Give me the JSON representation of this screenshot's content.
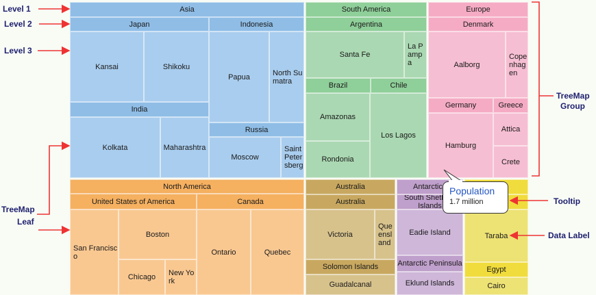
{
  "colors": {
    "asia_header": "#8fbde6",
    "asia_leaf": "#a9cdee",
    "south_america_header": "#8fcf99",
    "south_america_leaf": "#aad8b2",
    "europe_header": "#f5abc4",
    "europe_leaf": "#f6bed2",
    "north_america_header": "#f5b060",
    "north_america_leaf": "#f9c891",
    "australia_header": "#c8a860",
    "australia_leaf": "#d7c28c",
    "antarctica_header": "#bf9fcb",
    "antarctica_leaf": "#ceb7d9",
    "africa_header": "#f0dc3c",
    "africa_leaf": "#ede274",
    "annotation_text": "#1e1e6e",
    "arrow": "#ee3333",
    "tooltip_title": "#2456c4"
  },
  "tiles": [
    {
      "label": "Asia",
      "kind": "header",
      "group": "asia"
    },
    {
      "label": "Japan",
      "kind": "header",
      "group": "asia"
    },
    {
      "label": "Indonesia",
      "kind": "header",
      "group": "asia"
    },
    {
      "label": "Kansai",
      "kind": "leaf",
      "group": "asia"
    },
    {
      "label": "Shikoku",
      "kind": "leaf",
      "group": "asia"
    },
    {
      "label": "India",
      "kind": "header",
      "group": "asia"
    },
    {
      "label": "Kolkata",
      "kind": "leaf",
      "group": "asia"
    },
    {
      "label": "Maharashtra",
      "kind": "leaf",
      "group": "asia"
    },
    {
      "label": "Papua",
      "kind": "leaf",
      "group": "asia"
    },
    {
      "label": "North Sumatra",
      "kind": "leaf",
      "group": "asia"
    },
    {
      "label": "Russia",
      "kind": "header",
      "group": "asia"
    },
    {
      "label": "Moscow",
      "kind": "leaf",
      "group": "asia"
    },
    {
      "label": "Saint Petersberg",
      "kind": "leaf",
      "group": "asia"
    },
    {
      "label": "South America",
      "kind": "header",
      "group": "south_america"
    },
    {
      "label": "Argentina",
      "kind": "header",
      "group": "south_america"
    },
    {
      "label": "Santa Fe",
      "kind": "leaf",
      "group": "south_america"
    },
    {
      "label": "La Pampa",
      "kind": "leaf",
      "group": "south_america"
    },
    {
      "label": "Brazil",
      "kind": "header",
      "group": "south_america"
    },
    {
      "label": "Chile",
      "kind": "header",
      "group": "south_america"
    },
    {
      "label": "Amazonas",
      "kind": "leaf",
      "group": "south_america"
    },
    {
      "label": "Rondonia",
      "kind": "leaf",
      "group": "south_america"
    },
    {
      "label": "Los Lagos",
      "kind": "leaf",
      "group": "south_america"
    },
    {
      "label": "Europe",
      "kind": "header",
      "group": "europe"
    },
    {
      "label": "Denmark",
      "kind": "header",
      "group": "europe"
    },
    {
      "label": "Aalborg",
      "kind": "leaf",
      "group": "europe"
    },
    {
      "label": "Copenhagen",
      "kind": "leaf",
      "group": "europe"
    },
    {
      "label": "Germany",
      "kind": "header",
      "group": "europe"
    },
    {
      "label": "Greece",
      "kind": "header",
      "group": "europe"
    },
    {
      "label": "Hamburg",
      "kind": "leaf",
      "group": "europe"
    },
    {
      "label": "Attica",
      "kind": "leaf",
      "group": "europe"
    },
    {
      "label": "Crete",
      "kind": "leaf",
      "group": "europe"
    },
    {
      "label": "North America",
      "kind": "header",
      "group": "north_america"
    },
    {
      "label": "United States of America",
      "kind": "header",
      "group": "north_america"
    },
    {
      "label": "Canada",
      "kind": "header",
      "group": "north_america"
    },
    {
      "label": "San Francisco",
      "kind": "leaf",
      "group": "north_america"
    },
    {
      "label": "Boston",
      "kind": "leaf",
      "group": "north_america"
    },
    {
      "label": "Chicago",
      "kind": "leaf",
      "group": "north_america"
    },
    {
      "label": "New York",
      "kind": "leaf",
      "group": "north_america"
    },
    {
      "label": "Ontario",
      "kind": "leaf",
      "group": "north_america"
    },
    {
      "label": "Quebec",
      "kind": "leaf",
      "group": "north_america"
    },
    {
      "label": "Australia",
      "kind": "header",
      "group": "australia"
    },
    {
      "label": "Australia",
      "kind": "header",
      "group": "australia"
    },
    {
      "label": "Victoria",
      "kind": "leaf",
      "group": "australia"
    },
    {
      "label": "Queensland",
      "kind": "leaf",
      "group": "australia"
    },
    {
      "label": "Solomon Islands",
      "kind": "header",
      "group": "australia"
    },
    {
      "label": "Guadalcanal",
      "kind": "leaf",
      "group": "australia"
    },
    {
      "label": "Antarctica",
      "kind": "header",
      "group": "antarctica"
    },
    {
      "label": "South Shetland Islands",
      "kind": "header",
      "group": "antarctica"
    },
    {
      "label": "Eadie Island",
      "kind": "leaf",
      "group": "antarctica"
    },
    {
      "label": "Antarctic Peninsula",
      "kind": "header",
      "group": "antarctica"
    },
    {
      "label": "Eklund Islands",
      "kind": "leaf",
      "group": "antarctica"
    },
    {
      "label": "",
      "kind": "header",
      "group": "africa"
    },
    {
      "label": "",
      "kind": "header",
      "group": "africa"
    },
    {
      "label": "Taraba",
      "kind": "leaf",
      "group": "africa"
    },
    {
      "label": "Egypt",
      "kind": "header",
      "group": "africa"
    },
    {
      "label": "Cairo",
      "kind": "leaf",
      "group": "africa"
    }
  ],
  "annotations": {
    "level1": "Level 1",
    "level2": "Level 2",
    "level3": "Level 3",
    "leaf_line1": "TreeMap",
    "leaf_line2": "Leaf",
    "group_line1": "TreeMap",
    "group_line2": "Group",
    "tooltip": "Tooltip",
    "data_label": "Data Label"
  },
  "tooltip": {
    "title": "Population",
    "value": "1.7 million"
  }
}
